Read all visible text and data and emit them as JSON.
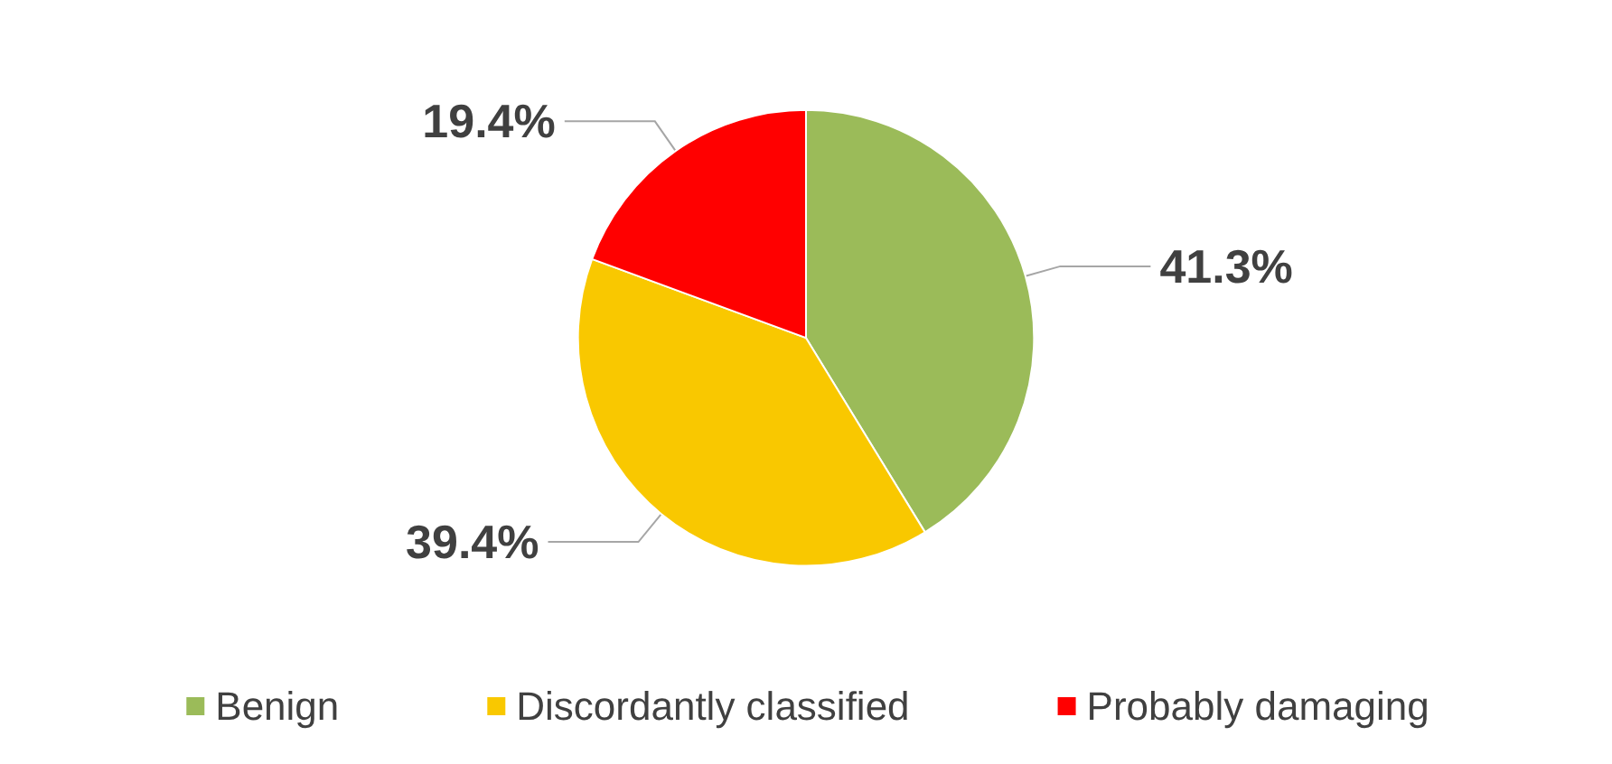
{
  "chart_data": {
    "type": "pie",
    "categories": [
      "Benign",
      "Discordantly classified",
      "Probably damaging"
    ],
    "values": [
      41.3,
      39.4,
      19.4
    ],
    "colors": [
      "#9bbb59",
      "#f9c800",
      "#ff0000"
    ],
    "value_labels": [
      "41.3%",
      "39.4%",
      "19.4%"
    ],
    "legend": "bottom"
  }
}
